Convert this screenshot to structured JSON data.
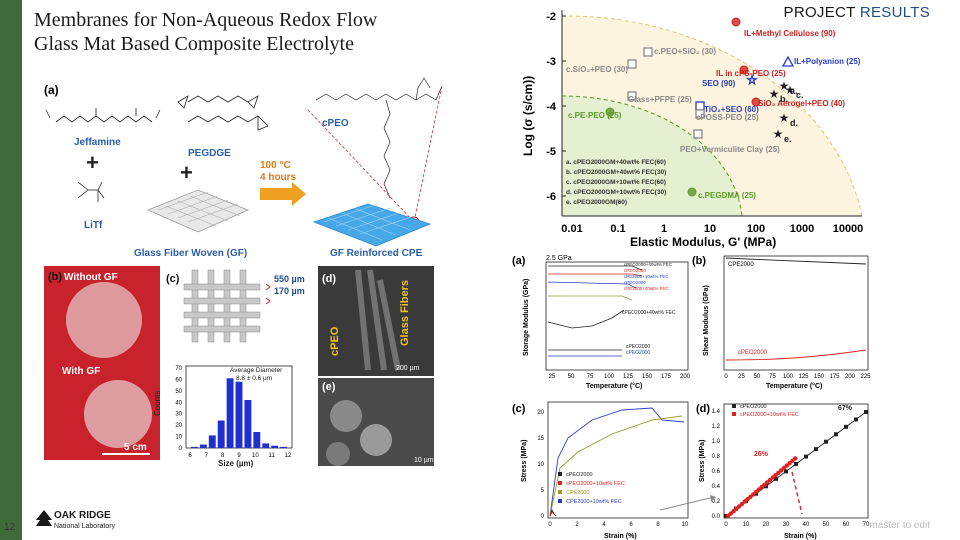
{
  "header": {
    "title_line1": "Membranes for Non-Aqueous Redox Flow",
    "title_line2": "Glass Mat Based Composite Electrolyte",
    "project_word": "PROJECT",
    "project_accent": "RESULTS",
    "accent_color": "#1f4e8a"
  },
  "footer": {
    "slide_number": "12",
    "logo_line1": "OAK RIDGE",
    "logo_line2": "National Laboratory",
    "note": "master to edit"
  },
  "left_figure": {
    "panel_a": "(a)",
    "jeffamine": "Jeffamine",
    "pegdge": "PEGDGE",
    "cpeo": "cPEO",
    "litf": "LiTf",
    "temp": "100 °C",
    "hours": "4 hours",
    "gf_label": "Glass Fiber Woven (GF)",
    "gf_cpe": "GF Reinforced CPE",
    "panel_b": "(b)",
    "without_gf": "Without GF",
    "with_gf": "With GF",
    "scale_5cm": "5 cm",
    "panel_c": "(c)",
    "dim1": "550 µm",
    "dim2": "170 µm",
    "panel_d": "(d)",
    "glass_fibers": "Glass Fibers",
    "cpeo_vert": "cPEO",
    "scale_200": "200 µm",
    "panel_e": "(e)",
    "scale_10": "10 µm",
    "hist_title": "Average Diameter",
    "hist_value": "8.8 ± 0.6 µm",
    "hist_ylabel": "Counts",
    "hist_xlabel": "Size (µm)",
    "hist_y_ticks": [
      "0",
      "10",
      "20",
      "30",
      "40",
      "50",
      "60",
      "70"
    ],
    "hist_x_ticks": [
      "6",
      "7",
      "8",
      "9",
      "10",
      "11",
      "12"
    ],
    "hist_counts": [
      1,
      3,
      11,
      24,
      61,
      58,
      42,
      14,
      4,
      2,
      1
    ]
  },
  "top_chart": {
    "ylabel": "Log (σ (s/cm))",
    "xlabel": "Elastic Modulus, G' (MPa)",
    "y_ticks": [
      "-2",
      "-3",
      "-4",
      "-5",
      "-6"
    ],
    "x_ticks": [
      "0.01",
      "0.1",
      "1",
      "10",
      "100",
      "1000",
      "10000"
    ],
    "points": [
      {
        "label": "IL+Methyl Cellulose (90)",
        "color": "#d21f1f"
      },
      {
        "label": "c.PEO+SiO₂ (30)",
        "color": "#888888"
      },
      {
        "label": "c.SiO₂+PEO (30)",
        "color": "#888888"
      },
      {
        "label": "IL+Polyanion (25)",
        "color": "#2a3cc4"
      },
      {
        "label": "SEO (90)",
        "color": "#2a3cc4"
      },
      {
        "label": "IL in cPS-PEO (25)",
        "color": "#d21f1f"
      },
      {
        "label": "Glass+PFPE (25)",
        "color": "#888888"
      },
      {
        "label": "SiO₂ Aerogel+PEO (40)",
        "color": "#d21f1f"
      },
      {
        "label": "TiO₂+SEO (60)",
        "color": "#2a3cc4"
      },
      {
        "label": "c.PE-PEO (25)",
        "color": "#5a9a2a"
      },
      {
        "label": "cPOSS-PEO (25)",
        "color": "#888888"
      },
      {
        "label": "PEO+Vermiculite Clay (25)",
        "color": "#888888"
      },
      {
        "label": "c.PEGDMA (25)",
        "color": "#5a9a2a"
      }
    ],
    "markers": [
      "a.",
      "b.",
      "c.",
      "d.",
      "e."
    ],
    "legend": [
      "a. cPEO2000GM+40wt% FEC(60)",
      "b. cPEO2000GM+40wt% FEC(30)",
      "c. cPEO2000GM+10wt% FEC(60)",
      "d. cPEO2000GM+10wt% FEC(30)",
      "e. cPEO2000GM(60)"
    ]
  },
  "panel_a_chart": {
    "label": "(a)",
    "corner": "2.5 GPa",
    "ylabel": "Storage Modulus (GPa)",
    "xlabel": "Temperature (°C)",
    "x_ticks": [
      "25",
      "50",
      "75",
      "100",
      "125",
      "150",
      "175",
      "200"
    ],
    "annot": "cPEO2000+40wt% FEC",
    "annot2": "cPEO2000",
    "annot3": "cPEO2000",
    "legend": [
      "cPEO2000+40wt% FEC",
      "cPEO2000",
      "cPE2000+10wt% FEC",
      "cPEO2000",
      "cPE2000+40wt% FEC"
    ]
  },
  "panel_b_chart": {
    "label": "(b)",
    "series_top": "CPE2000",
    "series_bottom": "cPEO2000",
    "ylabel": "Shear Modulus (GPa)",
    "xlabel": "Temperature (°C)",
    "x_ticks": [
      "0",
      "25",
      "50",
      "75",
      "100",
      "125",
      "150",
      "175",
      "200",
      "225"
    ]
  },
  "panel_c_chart": {
    "label": "(c)",
    "ylabel": "Stress (MPa)",
    "xlabel": "Strain (%)",
    "x_ticks": [
      "0",
      "2",
      "4",
      "6",
      "8",
      "10"
    ],
    "y_ticks": [
      "0",
      "5",
      "10",
      "15",
      "20"
    ],
    "legend": [
      "cPEO2000",
      "cPEO2000+10wt% FEC",
      "CPE2000",
      "CPE2000+10wt% FEC"
    ]
  },
  "panel_d_chart": {
    "label": "(d)",
    "ylabel": "Stress (MPa)",
    "xlabel": "Strain (%)",
    "x_ticks": [
      "0",
      "10",
      "20",
      "30",
      "40",
      "50",
      "60",
      "70"
    ],
    "y_ticks": [
      "0.0",
      "0.2",
      "0.4",
      "0.6",
      "0.8",
      "1.0",
      "1.2",
      "1.4"
    ],
    "legend": [
      "cPEO2000",
      "cPEO2000+10wt% FEC"
    ],
    "annot1": "67%",
    "annot2": "26%"
  }
}
